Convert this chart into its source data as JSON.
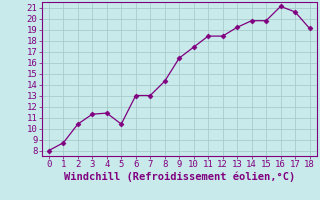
{
  "x": [
    0,
    1,
    2,
    3,
    4,
    5,
    6,
    7,
    8,
    9,
    10,
    11,
    12,
    13,
    14,
    15,
    16,
    17,
    18
  ],
  "y": [
    8.0,
    8.7,
    10.4,
    11.3,
    11.4,
    10.4,
    13.0,
    13.0,
    14.3,
    16.4,
    17.4,
    18.4,
    18.4,
    19.2,
    19.8,
    19.8,
    21.1,
    20.6,
    19.1
  ],
  "line_color": "#800080",
  "marker_color": "#800080",
  "bg_color": "#c8eaea",
  "grid_color": "#a8cccc",
  "axis_color": "#800080",
  "border_color": "#800080",
  "xlabel": "Windchill (Refroidissement éolien,°C)",
  "ylabel": "",
  "xlim": [
    -0.5,
    18.5
  ],
  "ylim": [
    7.5,
    21.5
  ],
  "xticks": [
    0,
    1,
    2,
    3,
    4,
    5,
    6,
    7,
    8,
    9,
    10,
    11,
    12,
    13,
    14,
    15,
    16,
    17,
    18
  ],
  "yticks": [
    8,
    9,
    10,
    11,
    12,
    13,
    14,
    15,
    16,
    17,
    18,
    19,
    20,
    21
  ],
  "tick_fontsize": 6.5,
  "xlabel_fontsize": 7.5
}
